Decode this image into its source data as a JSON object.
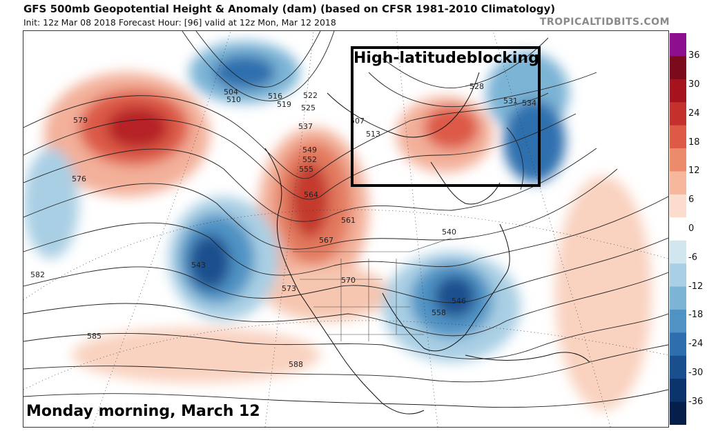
{
  "header": {
    "title": "GFS 500mb Geopotential Height & Anomaly (dam) (based on CFSR 1981-2010 Climatology)",
    "subtitle": "Init: 12z Mar 08 2018   Forecast Hour: [96]   valid at 12z Mon, Mar 12 2018",
    "brand": "TROPICALTIDBITS.COM"
  },
  "annotation": {
    "label": "High-latitudeblocking"
  },
  "caption": "Monday morning, March 12",
  "colorbar": {
    "ticks": [
      "36",
      "30",
      "24",
      "18",
      "12",
      "6",
      "0",
      "-6",
      "-12",
      "-18",
      "-24",
      "-30",
      "-36"
    ],
    "colors": [
      "#8e0f8e",
      "#7a0a1c",
      "#a5141e",
      "#c4302c",
      "#dc5a46",
      "#ec8a6c",
      "#f6b79c",
      "#fbdccd",
      "#ffffff",
      "#d2e6f0",
      "#a9cfe4",
      "#7cb4d6",
      "#4f93c4",
      "#2d6fae",
      "#1a4f8e",
      "#0c346c",
      "#061e4a"
    ]
  },
  "contours": [
    {
      "label": "504"
    },
    {
      "label": "510"
    },
    {
      "label": "516"
    },
    {
      "label": "519"
    },
    {
      "label": "522"
    },
    {
      "label": "525"
    },
    {
      "label": "528"
    },
    {
      "label": "531"
    },
    {
      "label": "534"
    },
    {
      "label": "537"
    },
    {
      "label": "540"
    },
    {
      "label": "543"
    },
    {
      "label": "546"
    },
    {
      "label": "549"
    },
    {
      "label": "552"
    },
    {
      "label": "555"
    },
    {
      "label": "558"
    },
    {
      "label": "561"
    },
    {
      "label": "564"
    },
    {
      "label": "567"
    },
    {
      "label": "570"
    },
    {
      "label": "573"
    },
    {
      "label": "576"
    },
    {
      "label": "579"
    },
    {
      "label": "582"
    },
    {
      "label": "585"
    },
    {
      "label": "588"
    },
    {
      "label": "507"
    },
    {
      "label": "513"
    }
  ]
}
